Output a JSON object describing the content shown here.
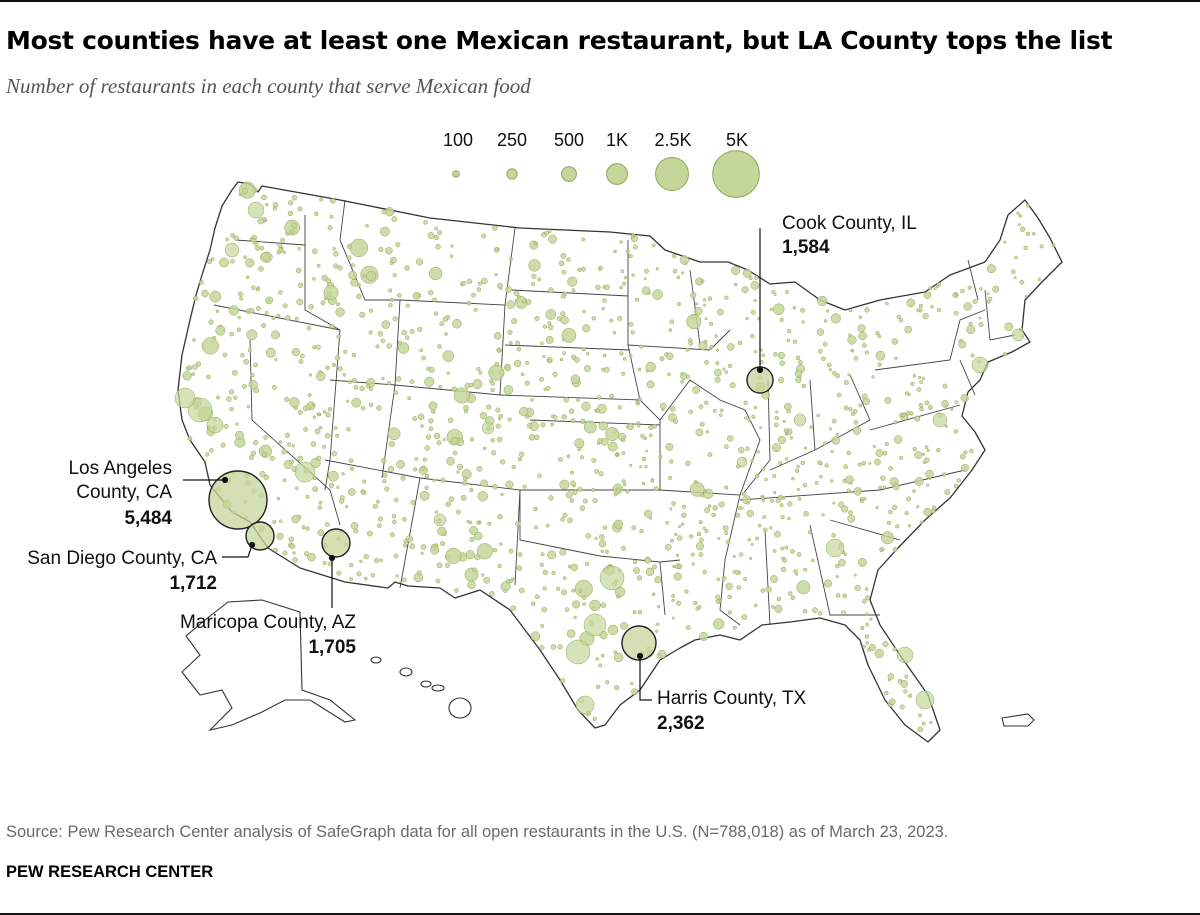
{
  "title": "Most counties have at least one Mexican restaurant, but LA County tops the list",
  "subtitle": "Number of restaurants in each county that serve Mexican food",
  "legend": [
    {
      "label": "100",
      "value": 100
    },
    {
      "label": "250",
      "value": 250
    },
    {
      "label": "500",
      "value": 500
    },
    {
      "label": "1K",
      "value": 1000
    },
    {
      "label": "2.5K",
      "value": 2500
    },
    {
      "label": "5K",
      "value": 5000
    }
  ],
  "callouts": {
    "cook": {
      "name": "Cook County, IL",
      "value": "1,584"
    },
    "la": {
      "name_line1": "Los Angeles",
      "name_line2": "County, CA",
      "value": "5,484"
    },
    "sandiego": {
      "name": "San Diego County, CA",
      "value": "1,712"
    },
    "maricopa": {
      "name": "Maricopa County, AZ",
      "value": "1,705"
    },
    "harris": {
      "name": "Harris County, TX",
      "value": "2,362"
    }
  },
  "source": "Source: Pew Research Center analysis of SafeGraph data for all open restaurants in the U.S. (N=788,018) as of March 23, 2023.",
  "credit": "PEW RESEARCH CENTER",
  "colors": {
    "bubble_fill": "#c5d69a",
    "bubble_stroke": "#8fa85a",
    "border": "#444444"
  }
}
